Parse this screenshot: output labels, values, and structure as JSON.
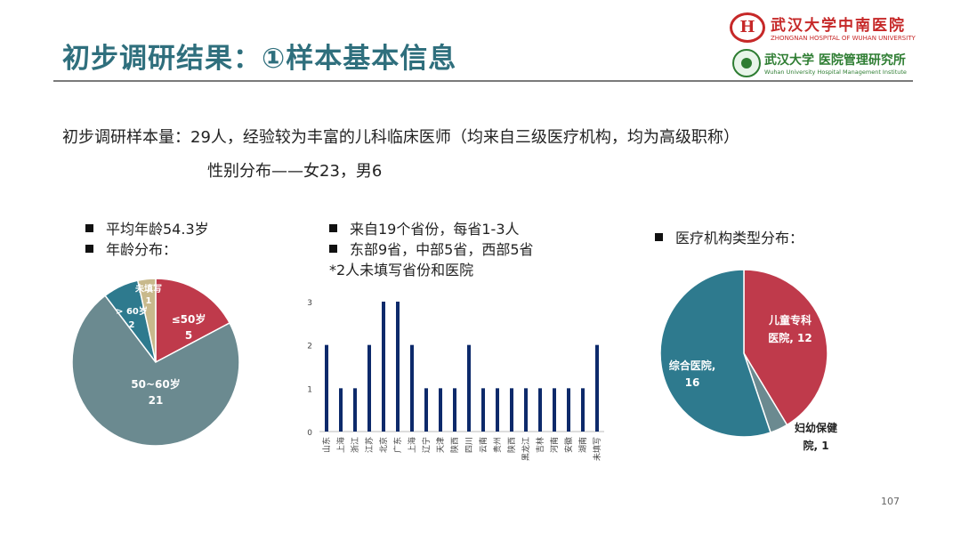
{
  "header": {
    "title": "初步调研结果：①样本基本信息",
    "logo1": {
      "mark": "H",
      "cn": "武汉大学中南医院",
      "en": "ZHONGNAN HOSPITAL OF WUHAN UNIVERSITY"
    },
    "logo2": {
      "cn": "武汉大学 医院管理研究所",
      "en": "Wuhan University Hospital Management Institute"
    }
  },
  "summary": {
    "line1": "初步调研样本量：29人，经验较为丰富的儿科临床医师（均来自三级医疗机构，均为高级职称）",
    "line2": "性别分布——女23，男6"
  },
  "left_bullets": [
    "平均年龄54.3岁",
    "年龄分布："
  ],
  "middle_bullets": [
    "来自19个省份，每省1-3人",
    "东部9省，中部5省，西部5省"
  ],
  "middle_note": "*2人未填写省份和医院",
  "right_bullets": [
    "医疗机构类型分布："
  ],
  "page_number": "107",
  "colors": {
    "red": "#bf3a4b",
    "teal": "#2e7a8e",
    "grey": "#6b8a90",
    "tan": "#c8b98c",
    "navy": "#0d2a6b"
  },
  "chart_data": [
    {
      "type": "pie",
      "title": "",
      "slices": [
        {
          "label": "≤50岁",
          "value": 5,
          "color": "#bf3a4b"
        },
        {
          "label": "50~60岁",
          "value": 21,
          "color": "#6b8a90"
        },
        {
          "label": "> 60岁",
          "value": 2,
          "color": "#2e7a8e"
        },
        {
          "label": "未填写",
          "value": 1,
          "color": "#c8b98c"
        }
      ]
    },
    {
      "type": "bar",
      "title": "",
      "categories": [
        "山东",
        "上海",
        "浙江",
        "江苏",
        "北京",
        "广东",
        "上海",
        "辽宁",
        "天津",
        "陕西",
        "四川",
        "云南",
        "贵州",
        "陕西",
        "黑龙江",
        "吉林",
        "河南",
        "安徽",
        "湖南",
        "未填写"
      ],
      "values": [
        2,
        1,
        1,
        2,
        3,
        3,
        2,
        1,
        1,
        1,
        2,
        1,
        1,
        1,
        1,
        1,
        1,
        1,
        1,
        2
      ],
      "yticks": [
        "0",
        "1",
        "2",
        "3"
      ],
      "ylim": [
        0,
        3
      ],
      "color": "#0d2a6b"
    },
    {
      "type": "pie",
      "title": "",
      "slices": [
        {
          "label": "儿童专科医院, 12",
          "value": 12,
          "color": "#bf3a4b"
        },
        {
          "label": "妇幼保健院, 1",
          "value": 1,
          "color": "#6b8a90"
        },
        {
          "label": "综合医院, 16",
          "value": 16,
          "color": "#2e7a8e"
        }
      ]
    }
  ]
}
